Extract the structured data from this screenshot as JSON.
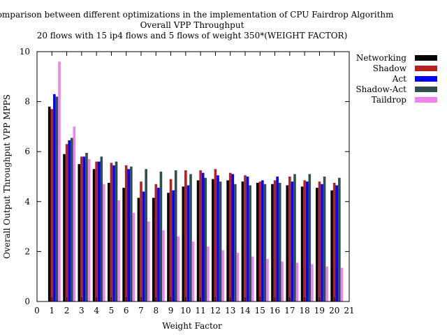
{
  "chart_data": {
    "type": "bar",
    "title": [
      "Comparison between different optimizations in the implementation of CPU Fairdrop Algorithm",
      "Overall VPP Throughput",
      "20 flows with 15 ip4 flows and 5 flows of weight 350*(WEIGHT FACTOR)"
    ],
    "xlabel": "Weight Factor",
    "ylabel": "Overall Output Throughput VPP MPPS",
    "xlim": [
      0,
      21
    ],
    "ylim": [
      0,
      10
    ],
    "x_ticks": [
      "0",
      "1",
      "2",
      "3",
      "4",
      "5",
      "6",
      "7",
      "8",
      "9",
      "10",
      "11",
      "12",
      "13",
      "14",
      "15",
      "16",
      "17",
      "18",
      "19",
      "20",
      "21"
    ],
    "y_ticks": [
      "0",
      "2",
      "4",
      "6",
      "8",
      "10"
    ],
    "categories": [
      "1",
      "2",
      "3",
      "4",
      "5",
      "6",
      "7",
      "8",
      "9",
      "10",
      "11",
      "12",
      "13",
      "14",
      "15",
      "16",
      "17",
      "18",
      "19",
      "20"
    ],
    "legend_position": "top-right, outside plot",
    "series": [
      {
        "name": "Networking",
        "color": "#000000",
        "values": [
          7.8,
          5.9,
          5.5,
          5.3,
          4.75,
          4.55,
          4.15,
          4.15,
          4.35,
          4.6,
          4.85,
          4.9,
          4.85,
          4.8,
          4.75,
          4.7,
          4.65,
          4.6,
          4.55,
          4.45
        ]
      },
      {
        "name": "Shadow",
        "color": "#b22222",
        "values": [
          7.7,
          6.3,
          5.8,
          5.6,
          5.55,
          5.45,
          4.8,
          4.7,
          4.9,
          5.25,
          5.25,
          5.3,
          5.15,
          5.05,
          4.8,
          4.85,
          5.0,
          4.85,
          4.8,
          4.75
        ]
      },
      {
        "name": "Act",
        "color": "#0000ff",
        "values": [
          8.3,
          6.45,
          5.8,
          5.6,
          5.45,
          5.3,
          4.4,
          4.55,
          4.45,
          4.65,
          5.15,
          5.05,
          5.1,
          5.0,
          4.85,
          5.0,
          4.8,
          4.8,
          4.7,
          4.65
        ]
      },
      {
        "name": "Shadow-Act",
        "color": "#2f4f4f",
        "values": [
          8.2,
          6.55,
          5.95,
          5.8,
          5.6,
          5.4,
          5.3,
          5.2,
          5.25,
          5.1,
          4.95,
          4.8,
          4.7,
          4.65,
          4.7,
          4.75,
          5.1,
          5.1,
          5.0,
          4.95
        ]
      },
      {
        "name": "Taildrop",
        "color": "#ee82ee",
        "values": [
          9.6,
          7.0,
          5.7,
          4.7,
          4.05,
          3.55,
          3.2,
          2.85,
          2.6,
          2.4,
          2.2,
          2.05,
          1.95,
          1.8,
          1.7,
          1.6,
          1.55,
          1.5,
          1.4,
          1.35
        ]
      }
    ]
  }
}
